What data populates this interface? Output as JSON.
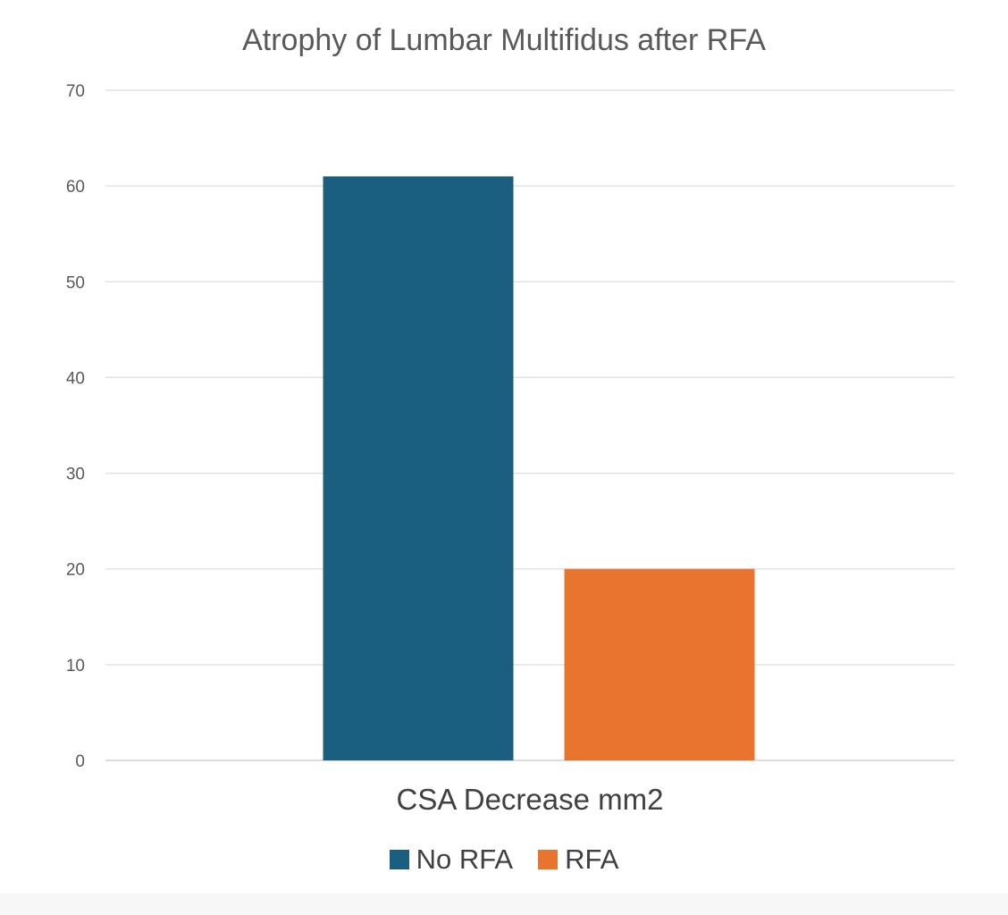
{
  "chart_data": {
    "type": "bar",
    "title": "Atrophy of Lumbar Multifidus after RFA",
    "categories": [
      "CSA Decrease mm2"
    ],
    "series": [
      {
        "name": "No RFA",
        "values": [
          61
        ],
        "color": "#1a5e80"
      },
      {
        "name": "RFA",
        "values": [
          20
        ],
        "color": "#e87430"
      }
    ],
    "xlabel": "",
    "ylabel": "",
    "ylim": [
      0,
      70
    ],
    "yticks": [
      0,
      10,
      20,
      30,
      40,
      50,
      60,
      70
    ],
    "grid": true,
    "legend_position": "bottom"
  }
}
